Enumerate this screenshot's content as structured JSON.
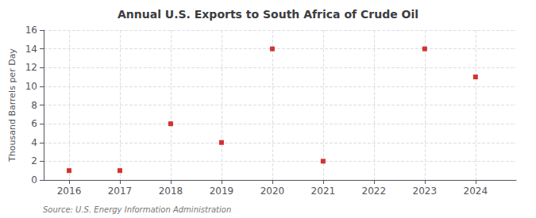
{
  "chart_data": {
    "type": "scatter",
    "title": "Annual U.S. Exports to South Africa of Crude Oil",
    "ylabel": "Thousand Barrels per Day",
    "annotation": "Source: U.S. Energy Information Administration",
    "x": [
      2016,
      2017,
      2018,
      2019,
      2020,
      2021,
      2022,
      2023,
      2024
    ],
    "values": [
      1,
      1,
      6,
      4,
      14,
      2,
      null,
      14,
      11
    ],
    "color": "#cc0000",
    "marker": "square",
    "xlim": [
      2015.5,
      2024.8
    ],
    "xticks": [
      2016,
      2017,
      2018,
      2019,
      2020,
      2021,
      2022,
      2023,
      2024
    ],
    "ylim": [
      0,
      16
    ],
    "yticks": [
      0,
      2,
      4,
      6,
      8,
      10,
      12,
      14,
      16
    ],
    "grid": true
  }
}
